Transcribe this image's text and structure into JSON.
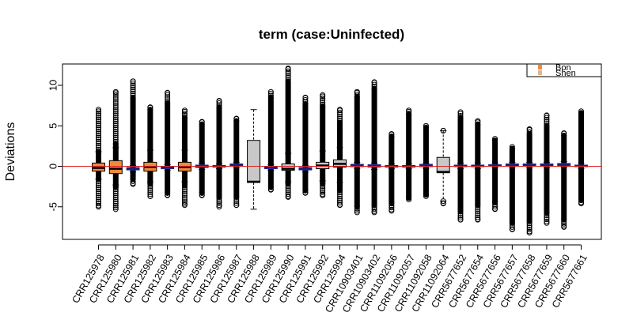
{
  "chart_data": {
    "type": "boxplot",
    "title": "term (case:Uninfected)",
    "xlabel": "",
    "ylabel": "Deviations",
    "ylim": [
      -9,
      13
    ],
    "yticks": [
      -5,
      0,
      5,
      10
    ],
    "reference_line": {
      "y": 0,
      "color": "#dd2222"
    },
    "grid": false,
    "legend": {
      "position": "top-right",
      "entries": [
        {
          "label": "Bon",
          "color": "#f28a3c"
        },
        {
          "label": "Shen",
          "color": "#e8b48c"
        }
      ]
    },
    "colors": {
      "orange": "#f28a3c",
      "gray": "#c8c8c8",
      "blue": "#2233aa",
      "outline": "#000000"
    },
    "categories": [
      "CRR125978",
      "CRR125980",
      "CRR125981",
      "CRR125982",
      "CRR125983",
      "CRR125984",
      "CRR125985",
      "CRR125986",
      "CRR125987",
      "CRR125988",
      "CRR125989",
      "CRR125990",
      "CRR125991",
      "CRR125992",
      "CRR125994",
      "CRR10903401",
      "CRR10903402",
      "CRR11092056",
      "CRR11092057",
      "CRR11092058",
      "CRR11092064",
      "CRR5677652",
      "CRR5677654",
      "CRR5677656",
      "CRR5677657",
      "CRR5677658",
      "CRR5677659",
      "CRR5677660",
      "CRR5677661"
    ],
    "boxes": [
      {
        "q1": -0.6,
        "median": -0.2,
        "q3": 0.4,
        "wlow": -1.6,
        "whigh": 1.8,
        "outmin": -5.0,
        "outmax": 7.0,
        "denseLow": -1.6,
        "denseHigh": 1.8,
        "fill": "orange"
      },
      {
        "q1": -0.9,
        "median": -0.3,
        "q3": 0.7,
        "wlow": -2.3,
        "whigh": 2.3,
        "outmin": -5.3,
        "outmax": 9.2,
        "denseLow": -2.6,
        "denseHigh": 2.8,
        "fill": "orange"
      },
      {
        "q1": -0.45,
        "median": -0.3,
        "q3": -0.15,
        "wlow": -0.7,
        "whigh": 0.1,
        "outmin": -2.2,
        "outmax": 10.5,
        "denseLow": -1.6,
        "denseHigh": 8.5,
        "fill": "blue"
      },
      {
        "q1": -0.6,
        "median": -0.1,
        "q3": 0.5,
        "wlow": -1.9,
        "whigh": 2.0,
        "outmin": -3.7,
        "outmax": 7.3,
        "denseLow": -2.2,
        "denseHigh": 7.0,
        "fill": "orange"
      },
      {
        "q1": -0.3,
        "median": -0.15,
        "q3": -0.05,
        "wlow": -0.5,
        "whigh": 0.2,
        "outmin": -3.6,
        "outmax": 9.1,
        "denseLow": -3.3,
        "denseHigh": 7.8,
        "fill": "blue"
      },
      {
        "q1": -0.6,
        "median": -0.1,
        "q3": 0.5,
        "wlow": -1.9,
        "whigh": 2.0,
        "outmin": -4.8,
        "outmax": 6.9,
        "denseLow": -2.4,
        "denseHigh": 6.0,
        "fill": "orange"
      },
      {
        "q1": -0.15,
        "median": 0.0,
        "q3": 0.15,
        "wlow": -0.4,
        "whigh": 0.4,
        "outmin": -3.6,
        "outmax": 5.5,
        "denseLow": -3.3,
        "denseHigh": 5.2,
        "fill": "blue"
      },
      {
        "q1": -0.1,
        "median": 0.0,
        "q3": 0.1,
        "wlow": -0.3,
        "whigh": 0.3,
        "outmin": -5.0,
        "outmax": 8.1,
        "denseLow": -3.8,
        "denseHigh": 7.3,
        "fill": "blue"
      },
      {
        "q1": 0.0,
        "median": 0.15,
        "q3": 0.3,
        "wlow": -0.2,
        "whigh": 0.5,
        "outmin": -4.8,
        "outmax": 5.9,
        "denseLow": -3.8,
        "denseHigh": 5.6,
        "fill": "blue"
      },
      {
        "q1": -2.0,
        "median": -1.9,
        "q3": 3.2,
        "wlow": -5.3,
        "whigh": 7.0,
        "outmin": null,
        "outmax": null,
        "denseLow": null,
        "denseHigh": null,
        "fill": "gray"
      },
      {
        "q1": -0.3,
        "median": -0.15,
        "q3": 0.0,
        "wlow": -0.5,
        "whigh": 0.2,
        "outmin": -2.9,
        "outmax": 9.2,
        "denseLow": -2.6,
        "denseHigh": 8.5,
        "fill": "blue"
      },
      {
        "q1": -0.5,
        "median": -0.3,
        "q3": 0.3,
        "wlow": -1.9,
        "whigh": 1.6,
        "outmin": -3.8,
        "outmax": 12.1,
        "denseLow": -2.2,
        "denseHigh": 10.5,
        "fill": "gray"
      },
      {
        "q1": -0.45,
        "median": -0.3,
        "q3": -0.15,
        "wlow": -0.7,
        "whigh": 0.1,
        "outmin": -3.3,
        "outmax": 8.5,
        "denseLow": -3.0,
        "denseHigh": 7.7,
        "fill": "blue"
      },
      {
        "q1": -0.3,
        "median": 0.1,
        "q3": 0.5,
        "wlow": -1.8,
        "whigh": 1.9,
        "outmin": -3.6,
        "outmax": 8.8,
        "denseLow": -2.2,
        "denseHigh": 7.4,
        "fill": "gray"
      },
      {
        "q1": -0.1,
        "median": 0.3,
        "q3": 0.8,
        "wlow": -2.0,
        "whigh": 2.3,
        "outmin": -4.8,
        "outmax": 7.0,
        "denseLow": -3.0,
        "denseHigh": 5.4,
        "fill": "gray"
      },
      {
        "q1": -0.05,
        "median": 0.1,
        "q3": 0.25,
        "wlow": -0.3,
        "whigh": 0.5,
        "outmin": -5.7,
        "outmax": 9.2,
        "denseLow": -5.0,
        "denseHigh": 8.6,
        "fill": "blue"
      },
      {
        "q1": -0.1,
        "median": 0.05,
        "q3": 0.2,
        "wlow": -0.4,
        "whigh": 0.4,
        "outmin": -5.7,
        "outmax": 10.4,
        "denseLow": -4.8,
        "denseHigh": 9.6,
        "fill": "blue"
      },
      {
        "q1": -0.1,
        "median": 0.0,
        "q3": 0.1,
        "wlow": -0.3,
        "whigh": 0.3,
        "outmin": -5.5,
        "outmax": 4.0,
        "denseLow": -4.6,
        "denseHigh": 3.7,
        "fill": "blue"
      },
      {
        "q1": -0.1,
        "median": 0.0,
        "q3": 0.1,
        "wlow": -0.3,
        "whigh": 0.3,
        "outmin": -4.1,
        "outmax": 6.9,
        "denseLow": -3.9,
        "denseHigh": 6.5,
        "fill": "blue"
      },
      {
        "q1": -0.05,
        "median": 0.1,
        "q3": 0.25,
        "wlow": -0.3,
        "whigh": 0.4,
        "outmin": -3.7,
        "outmax": 5.0,
        "denseLow": -3.5,
        "denseHigh": 4.8,
        "fill": "blue"
      },
      {
        "q1": -0.8,
        "median": -0.7,
        "q3": 1.1,
        "wlow": -4.3,
        "whigh": 4.4,
        "outmin": -4.6,
        "outmax": null,
        "denseLow": null,
        "denseHigh": null,
        "fill": "gray"
      },
      {
        "q1": -0.05,
        "median": 0.05,
        "q3": 0.15,
        "wlow": -0.3,
        "whigh": 0.4,
        "outmin": -6.6,
        "outmax": 6.7,
        "denseLow": -5.6,
        "denseHigh": 6.0,
        "fill": "blue"
      },
      {
        "q1": -0.05,
        "median": 0.05,
        "q3": 0.15,
        "wlow": -0.3,
        "whigh": 0.4,
        "outmin": -6.6,
        "outmax": 5.6,
        "denseLow": -4.8,
        "denseHigh": 5.2,
        "fill": "blue"
      },
      {
        "q1": 0.0,
        "median": 0.1,
        "q3": 0.2,
        "wlow": -0.2,
        "whigh": 0.4,
        "outmin": -5.3,
        "outmax": 3.4,
        "denseLow": -4.5,
        "denseHigh": 3.2,
        "fill": "blue"
      },
      {
        "q1": 0.05,
        "median": 0.15,
        "q3": 0.3,
        "wlow": -0.2,
        "whigh": 0.5,
        "outmin": -7.8,
        "outmax": 2.4,
        "denseLow": -7.0,
        "denseHigh": 2.2,
        "fill": "blue"
      },
      {
        "q1": 0.05,
        "median": 0.15,
        "q3": 0.3,
        "wlow": -0.2,
        "whigh": 0.5,
        "outmin": -8.2,
        "outmax": 4.6,
        "denseLow": -6.8,
        "denseHigh": 4.0,
        "fill": "blue"
      },
      {
        "q1": 0.05,
        "median": 0.15,
        "q3": 0.3,
        "wlow": -0.2,
        "whigh": 0.5,
        "outmin": -7.0,
        "outmax": 6.3,
        "denseLow": -5.8,
        "denseHigh": 5.0,
        "fill": "blue"
      },
      {
        "q1": 0.1,
        "median": 0.2,
        "q3": 0.35,
        "wlow": -0.1,
        "whigh": 0.6,
        "outmin": -7.5,
        "outmax": 4.1,
        "denseLow": -6.6,
        "denseHigh": 3.8,
        "fill": "blue"
      },
      {
        "q1": -0.05,
        "median": 0.05,
        "q3": 0.15,
        "wlow": -0.3,
        "whigh": 0.4,
        "outmin": -4.6,
        "outmax": 6.8,
        "denseLow": -4.2,
        "denseHigh": 6.6,
        "fill": "blue"
      }
    ]
  }
}
